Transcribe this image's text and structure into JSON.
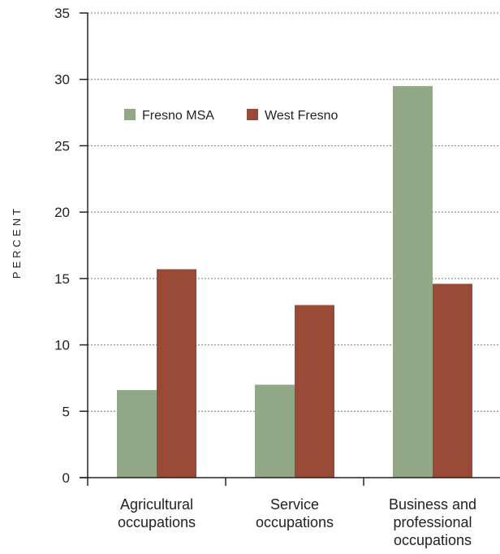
{
  "chart_data": {
    "type": "bar",
    "ylabel": "PERCENT",
    "ylim": [
      0,
      35
    ],
    "yticks": [
      0,
      5,
      10,
      15,
      20,
      25,
      30,
      35
    ],
    "grid": true,
    "legend_position": "top-left",
    "categories": [
      [
        "Agricultural",
        "occupations"
      ],
      [
        "Service",
        "occupations"
      ],
      [
        "Business and",
        "professional",
        "occupations"
      ]
    ],
    "series": [
      {
        "name": "Fresno MSA",
        "color": "#93a887",
        "values": [
          6.6,
          7.0,
          29.5
        ]
      },
      {
        "name": "West Fresno",
        "color": "#984a37",
        "values": [
          15.7,
          13.0,
          14.6
        ]
      }
    ]
  }
}
